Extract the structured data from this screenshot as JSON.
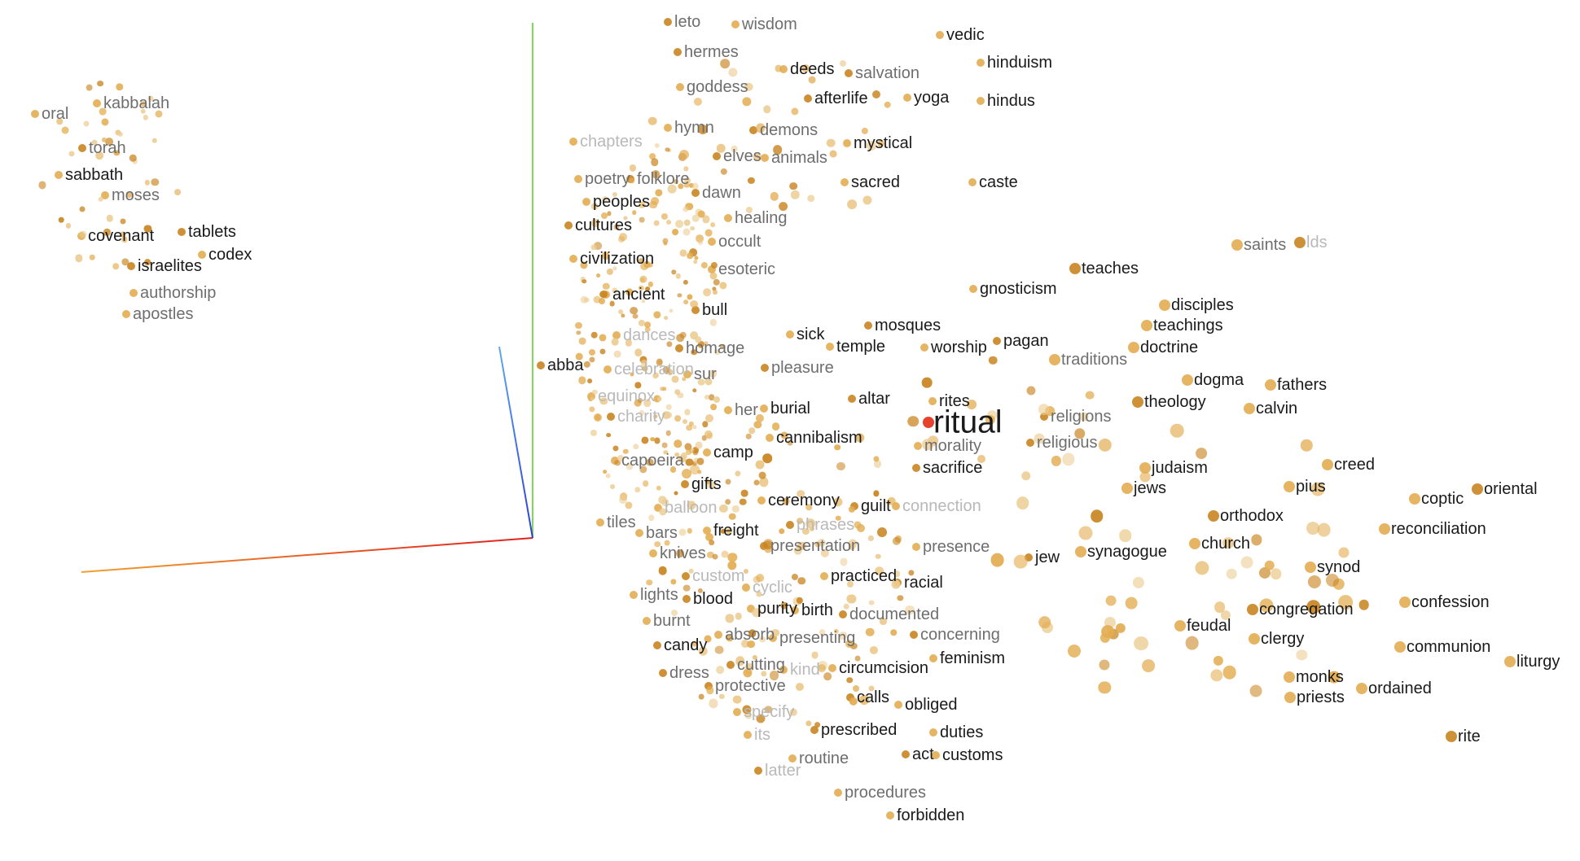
{
  "view": {
    "selected_word": "ritual",
    "colors": {
      "point": "#e3ad52",
      "point_dark": "#c98522",
      "point_faint": "#eccd94",
      "selected_point": "#e6432f",
      "axis_x": "#f0a030",
      "axis_y": "#7ed957",
      "axis_z": "#3a6ff0",
      "label_strong": "#1a1a1a",
      "label_mid": "#6e6e6e",
      "label_faint": "#b9b9b9"
    }
  },
  "words": [
    "leto",
    "wisdom",
    "vedic",
    "hermes",
    "hinduism",
    "deeds",
    "salvation",
    "goddess",
    "yoga",
    "afterlife",
    "hindus",
    "hymn",
    "demons",
    "mystical",
    "chapters",
    "elves",
    "animals",
    "poetry",
    "folklore",
    "sacred",
    "caste",
    "dawn",
    "peoples",
    "healing",
    "cultures",
    "occult",
    "saints",
    "lds",
    "civilization",
    "esoteric",
    "teaches",
    "ancient",
    "gnosticism",
    "bull",
    "disciples",
    "teachings",
    "mosques",
    "sick",
    "dances",
    "homage",
    "temple",
    "worship",
    "pagan",
    "doctrine",
    "traditions",
    "abba",
    "celebration",
    "sur",
    "pleasure",
    "dogma",
    "equinox",
    "altar",
    "rites",
    "fathers",
    "theology",
    "her",
    "burial",
    "charity",
    "calvin",
    "ritual",
    "religions",
    "cannibalism",
    "morality",
    "religious",
    "camp",
    "capoeira",
    "sacrifice",
    "creed",
    "judaism",
    "gifts",
    "pius",
    "jews",
    "oriental",
    "ceremony",
    "coptic",
    "guilt",
    "balloon",
    "connection",
    "orthodox",
    "tiles",
    "freight",
    "phrases",
    "bars",
    "reconciliation",
    "presentation",
    "church",
    "presence",
    "jew",
    "synagogue",
    "knives",
    "custom",
    "synod",
    "practiced",
    "racial",
    "cyclic",
    "lights",
    "blood",
    "purity",
    "birth",
    "documented",
    "burnt",
    "confession",
    "congregation",
    "absorb",
    "presenting",
    "concerning",
    "feudal",
    "clergy",
    "candy",
    "communion",
    "feminism",
    "cutting",
    "circumcision",
    "liturgy",
    "dress",
    "kind",
    "monks",
    "protective",
    "ordained",
    "priests",
    "calls",
    "obliged",
    "specify",
    "prescribed",
    "duties",
    "its",
    "act",
    "customs",
    "routine",
    "latter",
    "procedures",
    "forbidden",
    "rite",
    "oral",
    "kabbalah",
    "torah",
    "sabbath",
    "moses",
    "tablets",
    "covenant",
    "codex",
    "israelites",
    "authorship",
    "apostles"
  ]
}
